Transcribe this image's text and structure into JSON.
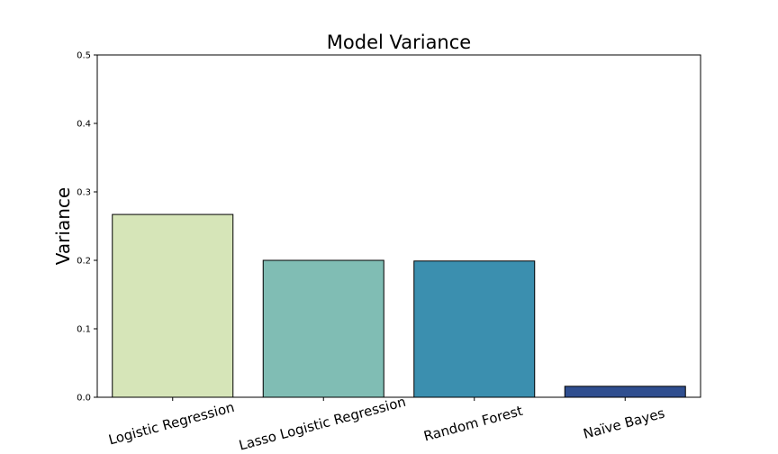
{
  "chart_data": {
    "type": "bar",
    "title": "Model Variance",
    "xlabel": "",
    "ylabel": "Variance",
    "categories": [
      "Logistic Regression",
      "Lasso Logistic Regression",
      "Random Forest",
      "Naïve Bayes"
    ],
    "values": [
      0.267,
      0.2,
      0.199,
      0.016
    ],
    "colors": [
      "#d6e5b8",
      "#80bdb4",
      "#3b8faf",
      "#2f4e8f"
    ],
    "ylim": [
      0,
      0.5
    ],
    "yticks": [
      "0.0",
      "0.1",
      "0.2",
      "0.3",
      "0.4",
      "0.5"
    ],
    "grid": false,
    "legend": "none"
  }
}
